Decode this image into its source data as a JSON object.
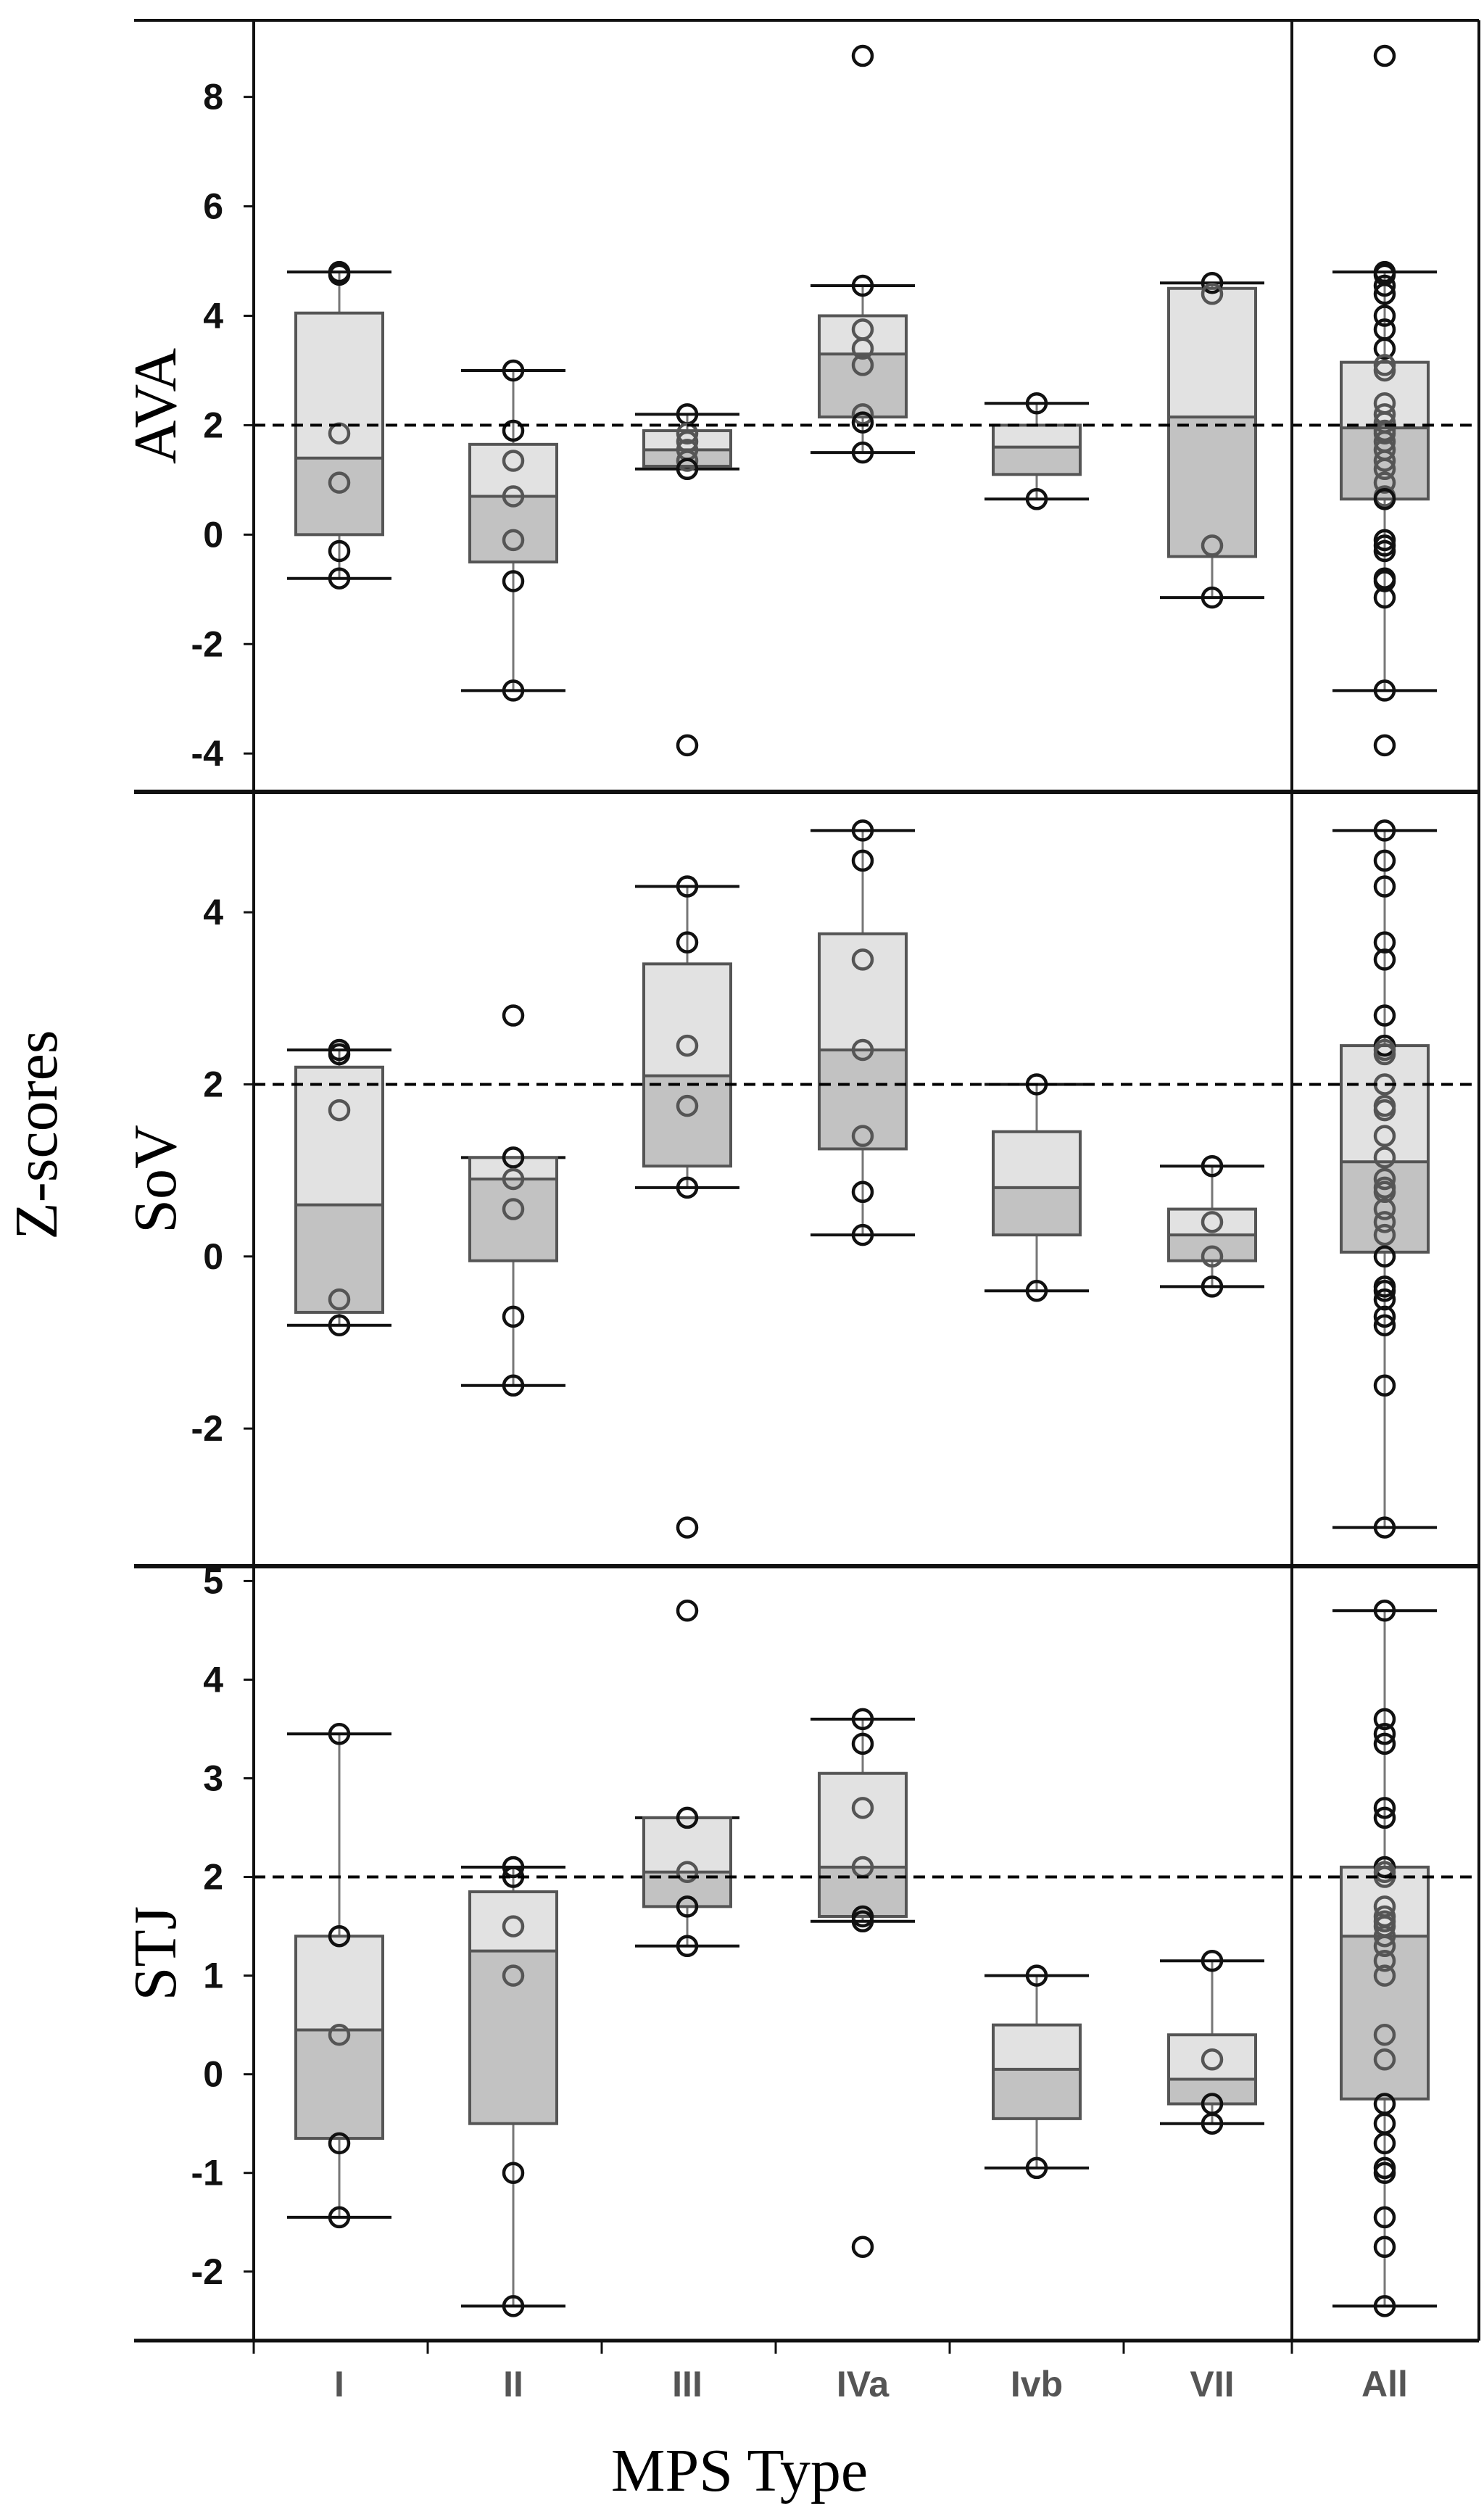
{
  "chart_data": {
    "type": "box",
    "xlabel": "MPS Type",
    "ylabel": "Z-scores",
    "categories": [
      "I",
      "II",
      "III",
      "IVa",
      "Ivb",
      "VII",
      "All"
    ],
    "reference_line": 2,
    "grid": false,
    "colors": {
      "box_upper": "#e2e2e2",
      "box_lower": "#c2c2c2",
      "box_edge": "#555555",
      "point_edge": "#111111",
      "reference": "#000000"
    },
    "panels": [
      {
        "name": "AVA",
        "ylim": [
          -4.7,
          9.4
        ],
        "ticks": [
          "-4",
          "-2",
          "0",
          "2",
          "4",
          "6",
          "8"
        ],
        "boxes": [
          {
            "category": "I",
            "whisker_low": -0.8,
            "q1": 0.0,
            "median": 1.4,
            "q3": 4.05,
            "whisker_high": 4.8,
            "points": [
              4.8,
              4.75,
              1.85,
              0.95,
              -0.3,
              -0.8
            ]
          },
          {
            "category": "II",
            "whisker_low": -2.85,
            "q1": -0.5,
            "median": 0.7,
            "q3": 1.65,
            "whisker_high": 3.0,
            "points": [
              3.0,
              1.9,
              1.35,
              0.7,
              -0.1,
              -0.85,
              -2.85
            ]
          },
          {
            "category": "III",
            "whisker_low": 1.2,
            "q1": 1.25,
            "median": 1.55,
            "q3": 1.9,
            "whisker_high": 2.2,
            "points": [
              2.2,
              1.85,
              1.7,
              1.55,
              1.35,
              1.2,
              -3.85
            ]
          },
          {
            "category": "IVa",
            "whisker_low": 1.5,
            "q1": 2.15,
            "median": 3.3,
            "q3": 4.0,
            "whisker_high": 4.55,
            "points": [
              8.75,
              4.55,
              3.75,
              3.4,
              3.1,
              2.2,
              2.05,
              1.5
            ]
          },
          {
            "category": "Ivb",
            "whisker_low": 0.65,
            "q1": 1.1,
            "median": 1.6,
            "q3": 2.0,
            "whisker_high": 2.4,
            "points": [
              2.4,
              0.65
            ]
          },
          {
            "category": "VII",
            "whisker_low": -1.15,
            "q1": -0.4,
            "median": 2.15,
            "q3": 4.5,
            "whisker_high": 4.6,
            "points": [
              4.6,
              4.4,
              -0.2,
              -1.15
            ]
          },
          {
            "category": "All",
            "whisker_low": -2.85,
            "q1": 0.65,
            "median": 1.95,
            "q3": 3.15,
            "whisker_high": 4.8,
            "points": [
              8.75,
              4.8,
              4.75,
              4.55,
              4.4,
              4.0,
              3.75,
              3.4,
              3.1,
              3.0,
              2.4,
              2.2,
              2.05,
              1.9,
              1.85,
              1.7,
              1.55,
              1.35,
              1.2,
              0.95,
              0.7,
              0.65,
              -0.1,
              -0.2,
              -0.3,
              -0.8,
              -0.85,
              -1.15,
              -2.85,
              -3.85
            ]
          }
        ]
      },
      {
        "name": "SoV",
        "ylim": [
          -3.6,
          5.4
        ],
        "ticks": [
          "-2",
          "0",
          "2",
          "4"
        ],
        "boxes": [
          {
            "category": "I",
            "whisker_low": -0.8,
            "q1": -0.65,
            "median": 0.6,
            "q3": 2.2,
            "whisker_high": 2.4,
            "points": [
              2.4,
              2.35,
              1.7,
              -0.5,
              -0.8
            ]
          },
          {
            "category": "II",
            "whisker_low": -1.5,
            "q1": -0.05,
            "median": 0.9,
            "q3": 1.15,
            "whisker_high": 1.15,
            "points": [
              2.8,
              1.15,
              0.9,
              0.55,
              -0.7,
              -1.5
            ]
          },
          {
            "category": "III",
            "whisker_low": 0.8,
            "q1": 1.05,
            "median": 2.1,
            "q3": 3.4,
            "whisker_high": 4.3,
            "points": [
              4.3,
              3.65,
              2.45,
              1.75,
              0.8,
              -3.15
            ]
          },
          {
            "category": "IVa",
            "whisker_low": 0.25,
            "q1": 1.25,
            "median": 2.4,
            "q3": 3.75,
            "whisker_high": 4.95,
            "points": [
              4.95,
              4.6,
              3.45,
              2.4,
              1.4,
              0.75,
              0.25
            ]
          },
          {
            "category": "Ivb",
            "whisker_low": -0.4,
            "q1": 0.25,
            "median": 0.8,
            "q3": 1.45,
            "whisker_high": 2.0,
            "points": [
              2.0,
              -0.4
            ]
          },
          {
            "category": "VII",
            "whisker_low": -0.35,
            "q1": -0.05,
            "median": 0.25,
            "q3": 0.55,
            "whisker_high": 1.05,
            "points": [
              1.05,
              0.4,
              0.0,
              -0.35
            ]
          },
          {
            "category": "All",
            "whisker_low": -3.15,
            "q1": 0.05,
            "median": 1.1,
            "q3": 2.45,
            "whisker_high": 4.95,
            "points": [
              4.95,
              4.6,
              4.3,
              3.65,
              3.45,
              2.8,
              2.45,
              2.4,
              2.35,
              2.0,
              1.75,
              1.7,
              1.4,
              1.15,
              0.9,
              0.8,
              0.75,
              0.55,
              0.4,
              0.25,
              0.0,
              -0.35,
              -0.4,
              -0.5,
              -0.7,
              -0.8,
              -1.5,
              -3.15
            ]
          }
        ]
      },
      {
        "name": "STJ",
        "ylim": [
          -2.7,
          5.15
        ],
        "ticks": [
          "-2",
          "-1",
          "0",
          "1",
          "2",
          "3",
          "4",
          "5"
        ],
        "boxes": [
          {
            "category": "I",
            "whisker_low": -1.45,
            "q1": -0.65,
            "median": 0.45,
            "q3": 1.4,
            "whisker_high": 3.45,
            "points": [
              3.45,
              1.4,
              0.4,
              -0.7,
              -1.45
            ]
          },
          {
            "category": "II",
            "whisker_low": -2.35,
            "q1": -0.5,
            "median": 1.25,
            "q3": 1.85,
            "whisker_high": 2.1,
            "points": [
              2.1,
              2.0,
              1.5,
              1.0,
              -1.0,
              -2.35
            ]
          },
          {
            "category": "III",
            "whisker_low": 1.3,
            "q1": 1.7,
            "median": 2.05,
            "q3": 2.6,
            "whisker_high": 2.6,
            "points": [
              4.7,
              2.6,
              2.05,
              1.7,
              1.3
            ]
          },
          {
            "category": "IVa",
            "whisker_low": 1.55,
            "q1": 1.6,
            "median": 2.1,
            "q3": 3.05,
            "whisker_high": 3.6,
            "points": [
              3.6,
              3.35,
              2.7,
              2.1,
              1.6,
              1.55,
              -1.75
            ]
          },
          {
            "category": "Ivb",
            "whisker_low": -0.95,
            "q1": -0.45,
            "median": 0.05,
            "q3": 0.5,
            "whisker_high": 1.0,
            "points": [
              1.0,
              -0.95
            ]
          },
          {
            "category": "VII",
            "whisker_low": -0.5,
            "q1": -0.3,
            "median": -0.05,
            "q3": 0.4,
            "whisker_high": 1.15,
            "points": [
              1.15,
              0.15,
              -0.3,
              -0.5
            ]
          },
          {
            "category": "All",
            "whisker_low": -2.35,
            "q1": -0.25,
            "median": 1.4,
            "q3": 2.1,
            "whisker_high": 4.7,
            "points": [
              4.7,
              3.6,
              3.45,
              3.35,
              2.7,
              2.6,
              2.1,
              2.05,
              2.0,
              1.7,
              1.6,
              1.55,
              1.5,
              1.4,
              1.3,
              1.15,
              1.0,
              0.4,
              0.15,
              -0.3,
              -0.5,
              -0.7,
              -0.95,
              -1.0,
              -1.45,
              -1.75,
              -2.35
            ]
          }
        ]
      }
    ]
  }
}
